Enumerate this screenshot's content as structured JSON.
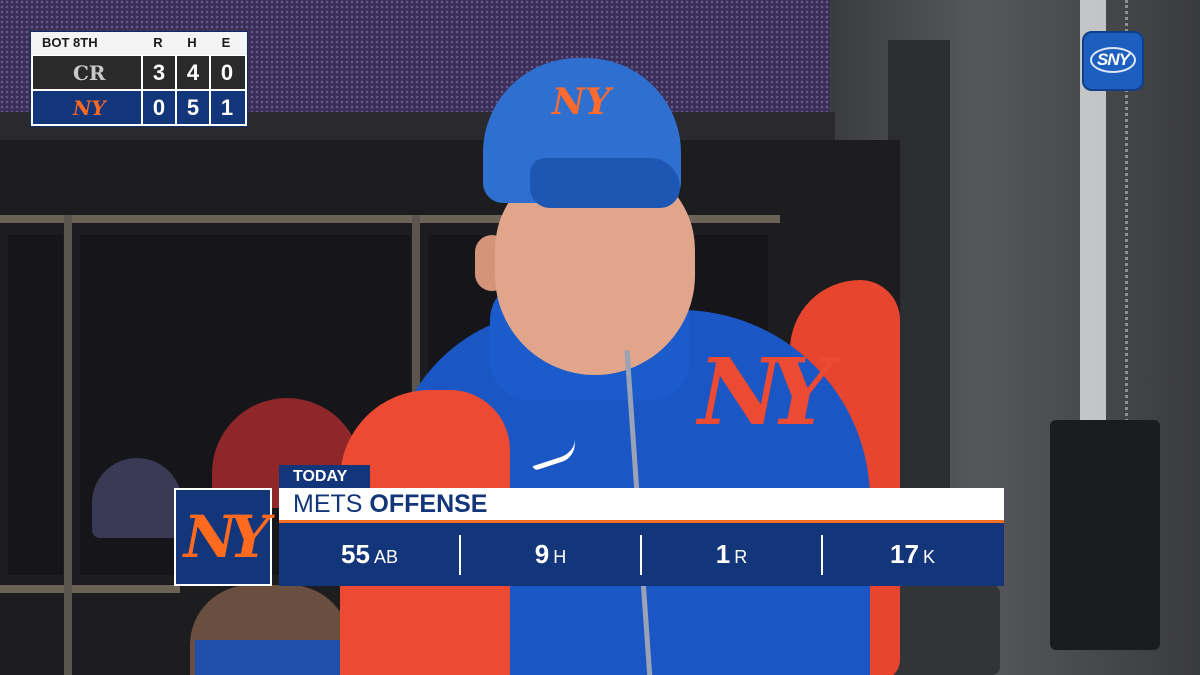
{
  "scorebug": {
    "inning": "BOT 8TH",
    "headers": [
      "R",
      "H",
      "E"
    ],
    "away": {
      "logo": "CR",
      "logo_icon": "rockies-logo-icon",
      "runs": "3",
      "hits": "4",
      "errors": "0"
    },
    "home": {
      "logo": "NY",
      "logo_icon": "mets-logo-icon",
      "runs": "0",
      "hits": "5",
      "errors": "1"
    }
  },
  "network": {
    "logo_text": "SNY",
    "icon": "sny-logo-icon"
  },
  "lower_third": {
    "tag": "TODAY",
    "team": "METS",
    "subject": "OFFENSE",
    "logo": "NY",
    "stats": [
      {
        "value": "55",
        "label": "AB"
      },
      {
        "value": "9",
        "label": "H"
      },
      {
        "value": "1",
        "label": "R"
      },
      {
        "value": "17",
        "label": "K"
      }
    ]
  },
  "colors": {
    "mets_blue": "#13357a",
    "mets_orange": "#f36f21",
    "rockies_black": "#2a2a2a",
    "sny_blue": "#1d5fbf"
  }
}
